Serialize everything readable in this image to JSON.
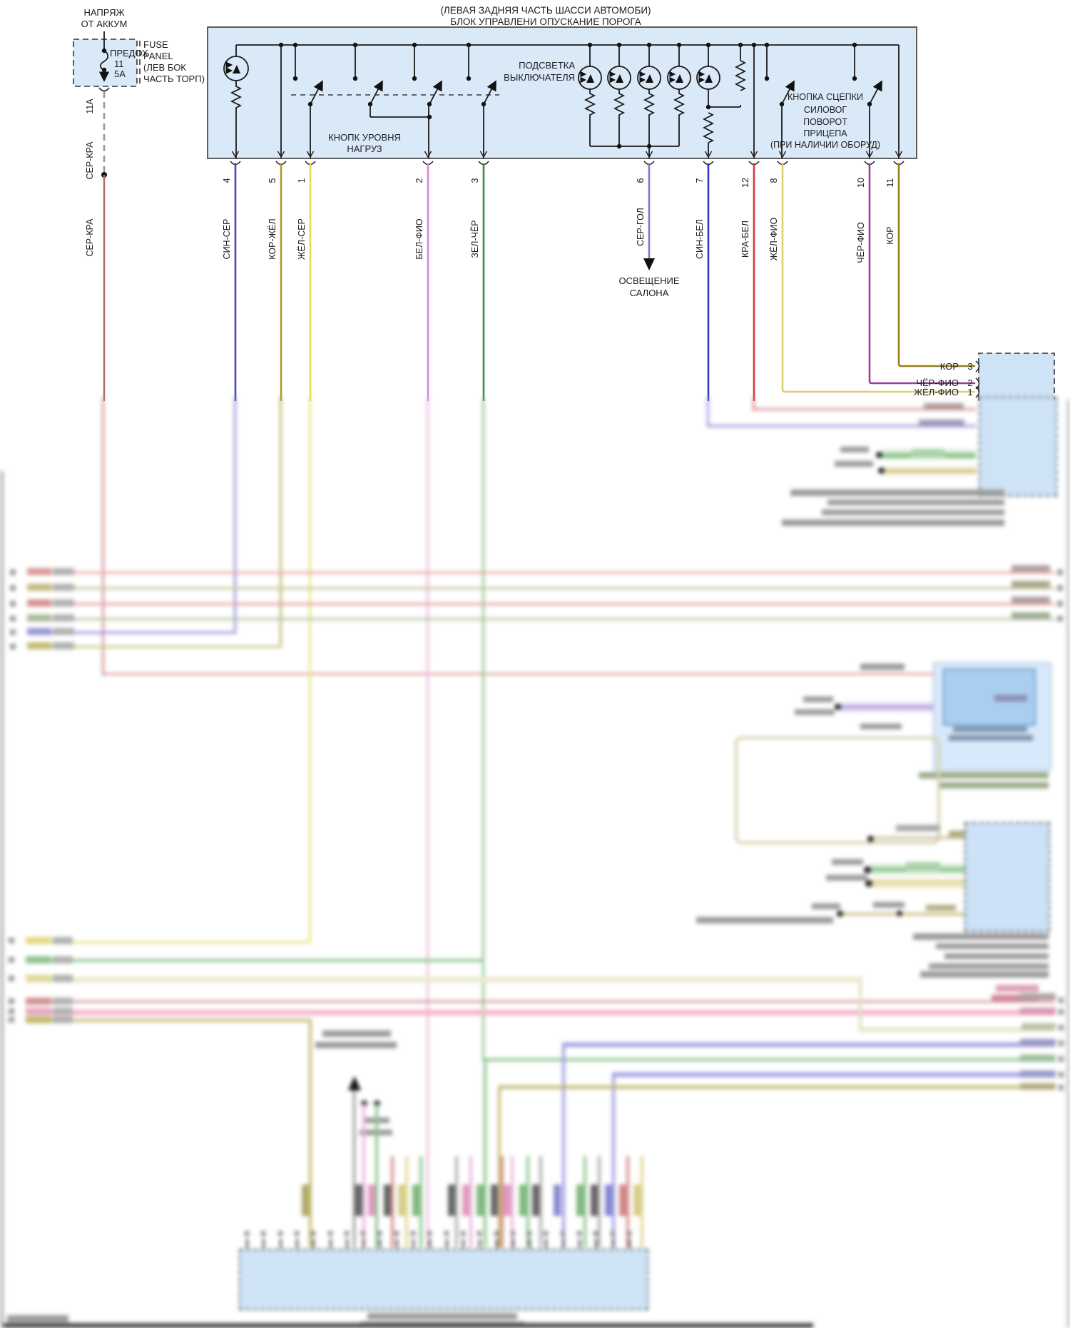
{
  "power_source": {
    "line1": "НАПРЯЖ",
    "line2": "ОТ АККУМ"
  },
  "fuse": {
    "name": "ПРЕДОХ",
    "number": "11",
    "rating": "5A",
    "panel_line1": "FUSE",
    "panel_line2": "PANEL",
    "panel_line3": "(ЛЕВ БОК",
    "panel_line4": "ЧАСТЬ ТОРП)",
    "circuit": "11A",
    "wire_label_top": "СЕР-КРА",
    "wire_label_bottom": "СЕР-КРА"
  },
  "module": {
    "title_line1": "(ЛЕВАЯ ЗАДНЯЯ ЧАСТЬ ШАССИ АВТОМОБИ)",
    "title_line2": "БЛОК УПРАВЛЕНИ ОПУСКАНИЕ ПОРОГА",
    "illumination_line1": "ПОДСВЕТКА",
    "illumination_line2": "ВЫКЛЮЧАТЕЛЯ",
    "load_button_line1": "КНОПК УРОВНЯ",
    "load_button_line2": "НАГРУЗ",
    "hitch_line1": "КНОПКА СЦЕПКИ",
    "hitch_line2": "СИЛОВОГ",
    "hitch_line3": "ПОВОРОТ",
    "hitch_line4": "ПРИЦЕПА",
    "hitch_line5": "(ПРИ НАЛИЧИИ ОБОРУД)"
  },
  "pins": [
    {
      "num": "4",
      "label": "СИН-СЕР",
      "color": "#4646c8"
    },
    {
      "num": "5",
      "label": "КОР-ЖЁЛ",
      "color": "#a89c28"
    },
    {
      "num": "1",
      "label": "ЖЁЛ-СЕР",
      "color": "#e2dc4e"
    },
    {
      "num": "2",
      "label": "БЕЛ-ФИО",
      "color": "#d884d8"
    },
    {
      "num": "3",
      "label": "ЗЕЛ-ЧЁР",
      "color": "#3f8f3f"
    },
    {
      "num": "6",
      "label": "СЕР-ГОЛ",
      "color": "#8574cb"
    },
    {
      "num": "7",
      "label": "СИН-БЕЛ",
      "color": "#3838cc"
    },
    {
      "num": "12",
      "label": "КРА-БЕЛ",
      "color": "#cc3c3c"
    },
    {
      "num": "8",
      "label": "ЖЁЛ-ФИО",
      "color": "#dfcf6a"
    },
    {
      "num": "10",
      "label": "ЧЁР-ФИО",
      "color": "#9a3c9a"
    },
    {
      "num": "11",
      "label": "КОР",
      "color": "#97801c"
    }
  ],
  "cabin_light": {
    "line1": "ОСВЕЩЕНИЕ",
    "line2": "САЛОНА"
  },
  "right_connector": {
    "rows": [
      {
        "label": "КОР",
        "pin": "3"
      },
      {
        "label": "ЧЁР-ФИО",
        "pin": "2"
      },
      {
        "label": "ЖЁЛ-ФИО",
        "pin": "1"
      }
    ]
  },
  "colors": {
    "module_fill": "#d9e9f8",
    "connector_fill": "#cfe3f6",
    "ser_kra_wire": "#b36b6b",
    "wire_black": "#1a1a1a"
  }
}
